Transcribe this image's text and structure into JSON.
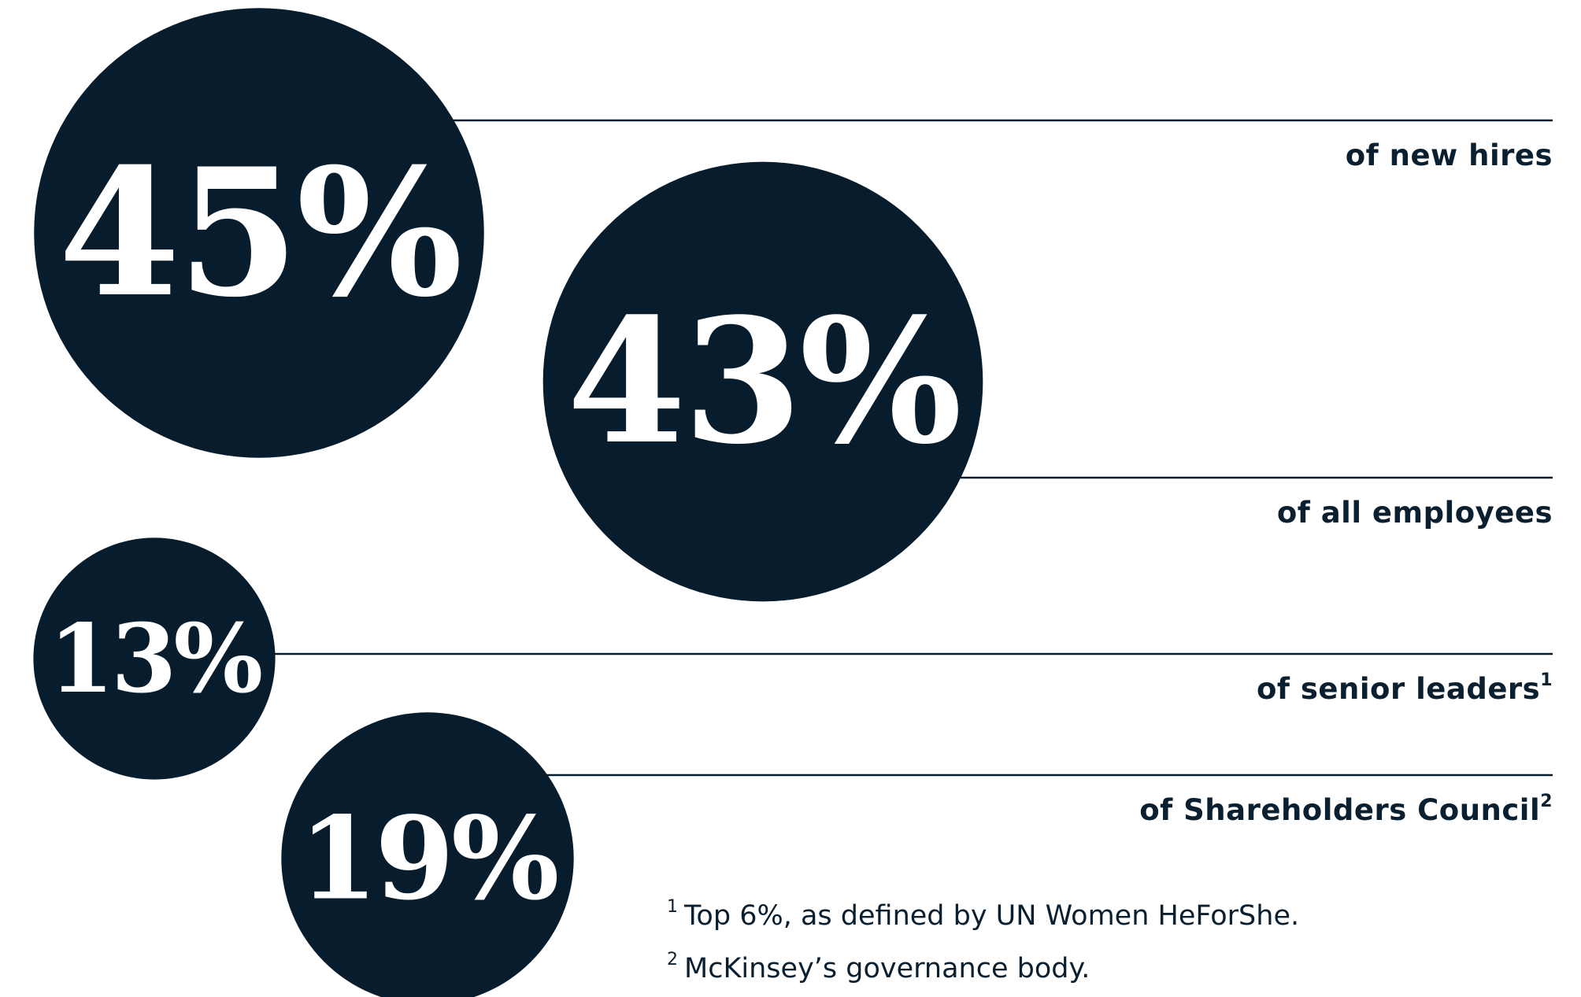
{
  "chart_data": {
    "type": "bubble",
    "categories": [
      "of new hires",
      "of all employees",
      "of senior leaders",
      "of Shareholders Council"
    ],
    "category_notes": [
      null,
      null,
      "1",
      "2"
    ],
    "values": [
      45,
      43,
      13,
      19
    ],
    "value_labels": [
      "45%",
      "43%",
      "13%",
      "19%"
    ],
    "color": "#071c2c",
    "footnotes": [
      {
        "mark": "1",
        "text": "Top 6%, as defined by UN Women HeForShe."
      },
      {
        "mark": "2",
        "text": "McKinsey’s governance body."
      }
    ]
  }
}
